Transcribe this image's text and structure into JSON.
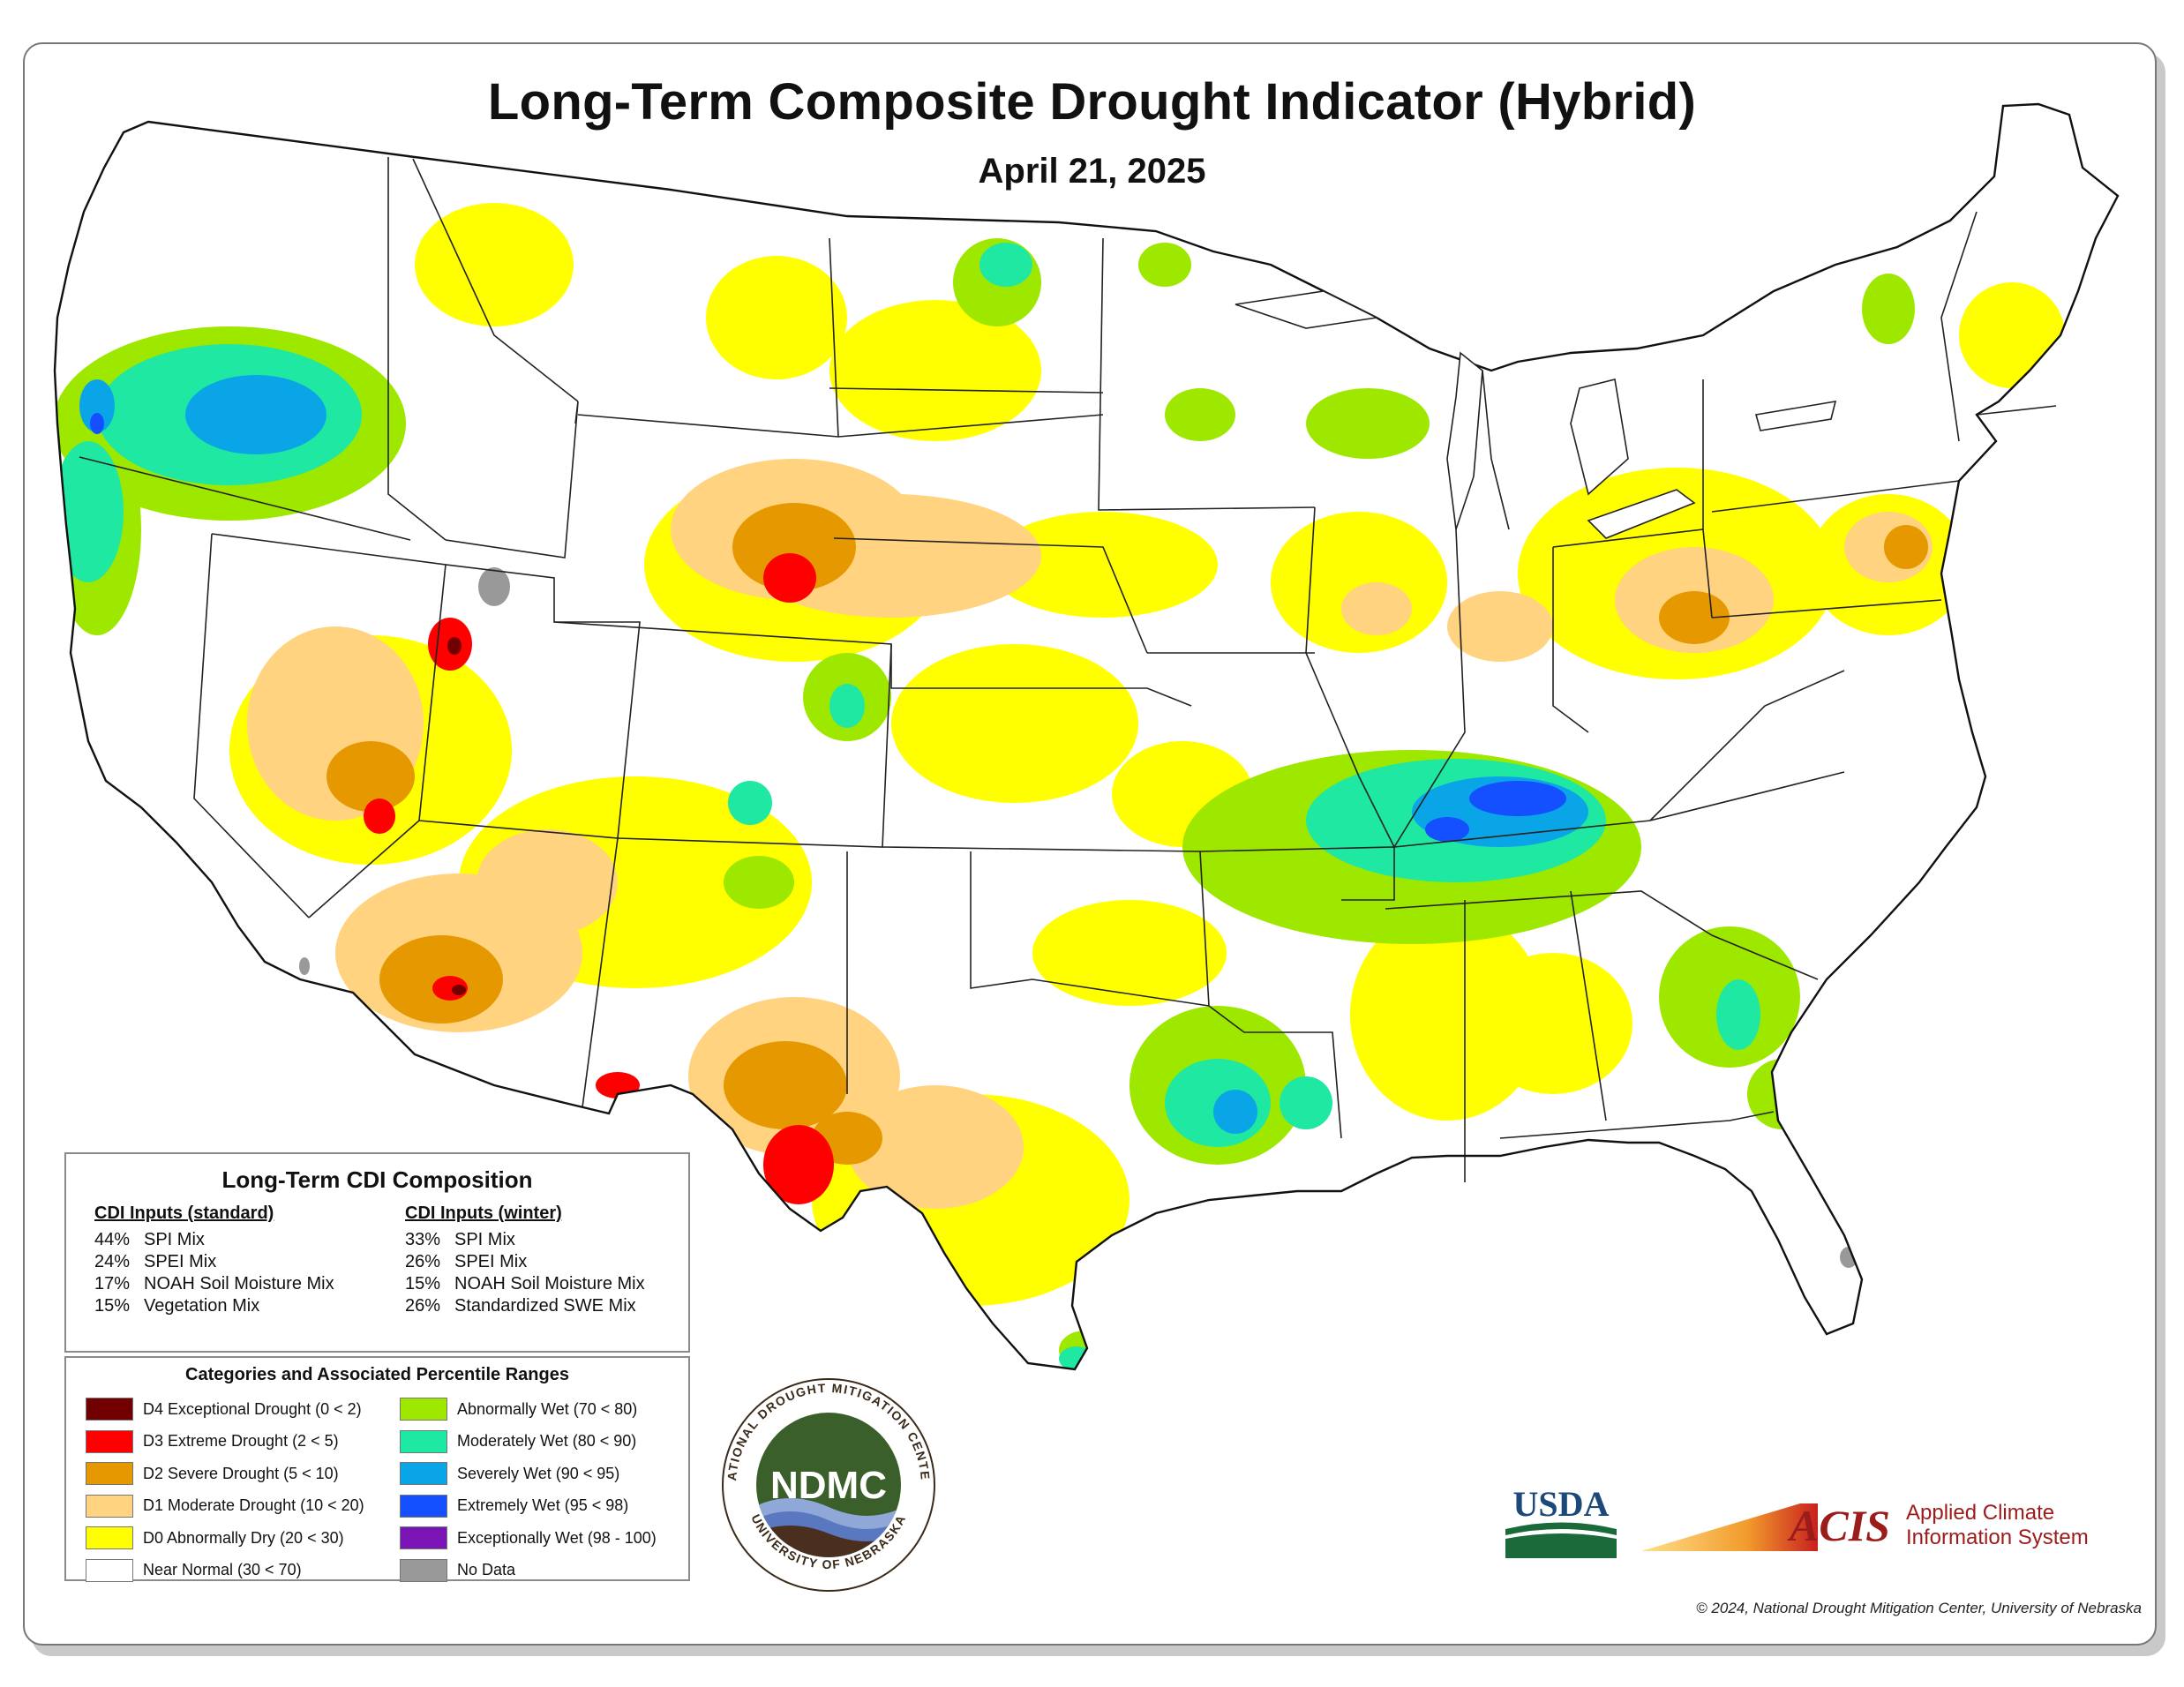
{
  "title": "Long-Term Composite Drought Indicator (Hybrid)",
  "date": "April 21, 2025",
  "composition": {
    "title": "Long-Term CDI Composition",
    "standard_header": "CDI Inputs (standard)",
    "standard": [
      {
        "pct": "44%",
        "name": "SPI Mix"
      },
      {
        "pct": "24%",
        "name": "SPEI Mix"
      },
      {
        "pct": "17%",
        "name": "NOAH Soil Moisture Mix"
      },
      {
        "pct": "15%",
        "name": "Vegetation Mix"
      }
    ],
    "winter_header": "CDI Inputs (winter)",
    "winter": [
      {
        "pct": "33%",
        "name": "SPI Mix"
      },
      {
        "pct": "26%",
        "name": "SPEI Mix"
      },
      {
        "pct": "15%",
        "name": "NOAH Soil Moisture Mix"
      },
      {
        "pct": "26%",
        "name": "Standardized SWE Mix"
      }
    ]
  },
  "categories": {
    "title": "Categories and Associated Percentile Ranges",
    "left": [
      {
        "label": "D4 Exceptional Drought (0 < 2)",
        "color": "#730000"
      },
      {
        "label": "D3 Extreme Drought (2 < 5)",
        "color": "#ff0000"
      },
      {
        "label": "D2 Severe Drought (5 < 10)",
        "color": "#e69800"
      },
      {
        "label": "D1 Moderate Drought (10 < 20)",
        "color": "#ffd37f"
      },
      {
        "label": "D0 Abnormally Dry (20 < 30)",
        "color": "#ffff00"
      },
      {
        "label": "Near Normal (30 < 70)",
        "color": "#ffffff"
      }
    ],
    "right": [
      {
        "label": "Abnormally Wet (70 < 80)",
        "color": "#9ee800"
      },
      {
        "label": "Moderately Wet (80 < 90)",
        "color": "#1ee8a2"
      },
      {
        "label": "Severely Wet (90 < 95)",
        "color": "#0aa5e6"
      },
      {
        "label": "Extremely Wet (95 < 98)",
        "color": "#1450ff"
      },
      {
        "label": "Exceptionally Wet (98 - 100)",
        "color": "#7a14b4"
      },
      {
        "label": "No Data",
        "color": "#999999"
      }
    ]
  },
  "logos": {
    "ndmc_abbrev": "NDMC",
    "ndmc_ring_top": "NATIONAL DROUGHT MITIGATION CENTER",
    "ndmc_ring_bottom": "UNIVERSITY OF NEBRASKA",
    "usda": "USDA",
    "acis_abbrev": "ACIS",
    "acis_line1": "Applied Climate",
    "acis_line2": "Information System"
  },
  "copyright": "© 2024, National Drought Mitigation Center, University of Nebraska",
  "map_regions": [
    {
      "region": "pacific-northwest",
      "category": "Severely Wet"
    },
    {
      "region": "tennessee-kentucky",
      "category": "Extremely Wet"
    },
    {
      "region": "southern-plains-east-texas",
      "category": "Moderately Wet"
    },
    {
      "region": "wyoming-southwest-nebraska",
      "category": "D3 Extreme Drought"
    },
    {
      "region": "southern-arizona",
      "category": "D2 Severe Drought"
    },
    {
      "region": "west-texas-big-bend",
      "category": "D3 Extreme Drought"
    },
    {
      "region": "northern-utah",
      "category": "D3 Extreme Drought"
    },
    {
      "region": "mid-atlantic",
      "category": "D1 Moderate Drought"
    }
  ]
}
